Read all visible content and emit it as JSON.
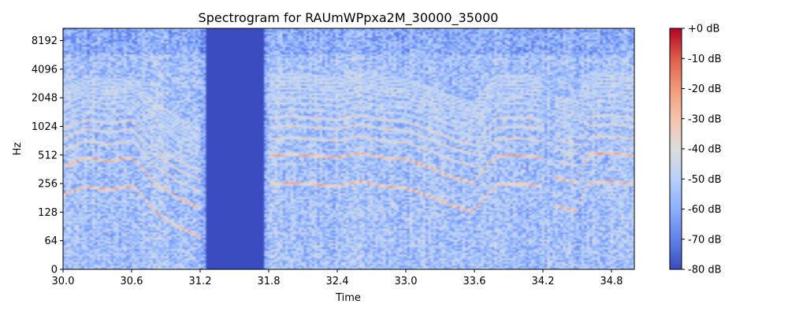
{
  "chart_data": {
    "type": "heatmap",
    "title": "Spectrogram for RAUmWPpxa2M_30000_35000",
    "xlabel": "Time",
    "ylabel": "Hz",
    "x_range": [
      30.0,
      35.0
    ],
    "x_ticks": [
      30.0,
      30.6,
      31.2,
      31.8,
      32.4,
      33.0,
      33.6,
      34.2,
      34.8
    ],
    "x_tick_labels": [
      "30.0",
      "30.6",
      "31.2",
      "31.8",
      "32.4",
      "33.0",
      "33.6",
      "34.2",
      "34.8"
    ],
    "y_scale": "symlog",
    "y_range": [
      0,
      11025
    ],
    "y_ticks": [
      0,
      64,
      128,
      256,
      512,
      1024,
      2048,
      4096,
      8192
    ],
    "y_tick_labels": [
      "0",
      "64",
      "128",
      "256",
      "512",
      "1024",
      "2048",
      "4096",
      "8192"
    ],
    "colorbar": {
      "colormap": "coolwarm",
      "range": [
        -80,
        0
      ],
      "ticks": [
        0,
        -10,
        -20,
        -30,
        -40,
        -50,
        -60,
        -70,
        -80
      ],
      "tick_labels": [
        "+0 dB",
        "-10 dB",
        "-20 dB",
        "-30 dB",
        "-40 dB",
        "-50 dB",
        "-60 dB",
        "-70 dB",
        "-80 dB"
      ]
    },
    "silent_interval": [
      31.25,
      31.75
    ],
    "harmonic_tracks": [
      {
        "t": [
          30.0,
          30.2,
          30.4,
          30.6,
          30.8,
          31.0,
          31.2
        ],
        "f0": [
          190,
          240,
          220,
          240,
          130,
          90,
          70
        ]
      },
      {
        "t": [
          31.8,
          32.0,
          32.2,
          32.4,
          32.6,
          32.8,
          33.0,
          33.2,
          33.4,
          33.6,
          33.8,
          34.0,
          34.2
        ],
        "f0": [
          250,
          260,
          250,
          240,
          270,
          240,
          230,
          190,
          150,
          130,
          250,
          255,
          240
        ]
      },
      {
        "t": [
          34.3,
          34.5,
          34.6,
          34.8,
          35.0
        ],
        "f0": [
          150,
          130,
          260,
          270,
          250
        ]
      }
    ]
  }
}
